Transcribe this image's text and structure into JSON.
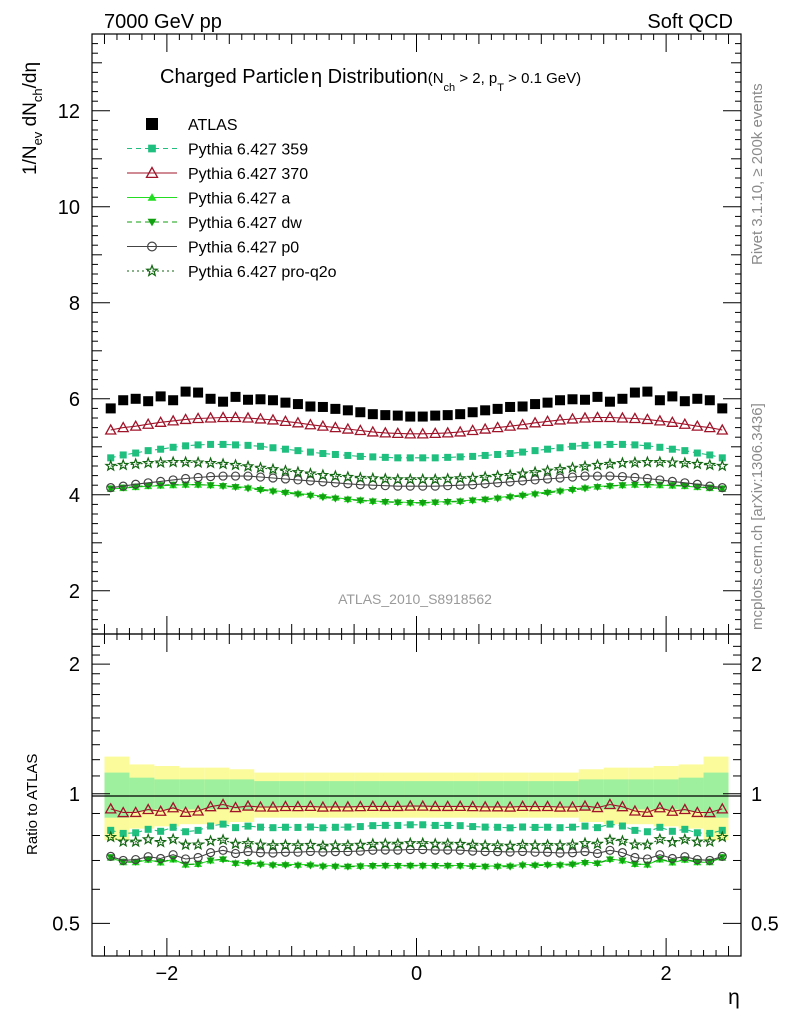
{
  "header": {
    "left": "7000 GeV pp",
    "right": "Soft QCD"
  },
  "side": {
    "rivet": "Rivet 3.1.10, ≥ 200k events",
    "mcplots": "mcplots.cern.ch [arXiv:1306.3436]"
  },
  "chart_data": {
    "type": "scatter",
    "title": {
      "main": "Charged Particle",
      "eta": "η",
      "dist": " Distribution",
      "sub_open": "(N",
      "sub_ch": "ch",
      "sub_mid": " > 2, p",
      "sub_t": "T",
      "sub_close": " > 0.1 GeV)"
    },
    "watermark": "ATLAS_2010_S8918562",
    "ylabel_main": {
      "p1": "1/N",
      "s1": "ev",
      "p2": " dN",
      "s2": "ch",
      "p3": "/dη"
    },
    "ylabel_ratio": "Ratio to ATLAS",
    "xlabel": "η",
    "xlim": [
      -2.6,
      2.6
    ],
    "ylim_main": [
      1.1,
      13.6
    ],
    "ylim_ratio": [
      0.42,
      2.35
    ],
    "ratio_log": true,
    "x_ticks": [
      "−2",
      "0",
      "2"
    ],
    "x_tick_values": [
      -2,
      0,
      2
    ],
    "y_ticks_main": [
      "2",
      "4",
      "6",
      "8",
      "10",
      "12"
    ],
    "y_tick_values_main": [
      2,
      4,
      6,
      8,
      10,
      12
    ],
    "y_ticks_ratio": [
      "0.5",
      "1",
      "2"
    ],
    "y_tick_values_ratio": [
      0.5,
      1,
      2
    ],
    "x": [
      -2.45,
      -2.35,
      -2.25,
      -2.15,
      -2.05,
      -1.95,
      -1.85,
      -1.75,
      -1.65,
      -1.55,
      -1.45,
      -1.35,
      -1.25,
      -1.15,
      -1.05,
      -0.95,
      -0.85,
      -0.75,
      -0.65,
      -0.55,
      -0.45,
      -0.35,
      -0.25,
      -0.15,
      -0.05,
      0.05,
      0.15,
      0.25,
      0.35,
      0.45,
      0.55,
      0.65,
      0.75,
      0.85,
      0.95,
      1.05,
      1.15,
      1.25,
      1.35,
      1.45,
      1.55,
      1.65,
      1.75,
      1.85,
      1.95,
      2.05,
      2.15,
      2.25,
      2.35,
      2.45
    ],
    "series": [
      {
        "name": "ATLAS",
        "color": "#000000",
        "marker": "square-filled",
        "line": "none",
        "values": [
          5.8,
          5.97,
          6.0,
          5.95,
          6.05,
          5.97,
          6.15,
          6.13,
          6.0,
          5.94,
          6.04,
          5.98,
          5.99,
          5.97,
          5.92,
          5.89,
          5.84,
          5.83,
          5.79,
          5.76,
          5.72,
          5.68,
          5.66,
          5.65,
          5.63,
          5.63,
          5.65,
          5.66,
          5.68,
          5.72,
          5.76,
          5.79,
          5.83,
          5.84,
          5.89,
          5.92,
          5.97,
          5.99,
          5.98,
          6.04,
          5.94,
          6.0,
          6.13,
          6.15,
          5.97,
          6.05,
          5.95,
          6.0,
          5.97,
          5.8
        ]
      },
      {
        "name": "Pythia 6.427 359",
        "color": "#1fbf7f",
        "marker": "square-small",
        "line": "dashed",
        "values": [
          4.77,
          4.83,
          4.87,
          4.92,
          4.95,
          4.99,
          5.02,
          5.04,
          5.05,
          5.05,
          5.04,
          5.03,
          5.01,
          4.98,
          4.95,
          4.92,
          4.89,
          4.86,
          4.84,
          4.82,
          4.8,
          4.79,
          4.78,
          4.77,
          4.77,
          4.77,
          4.77,
          4.78,
          4.79,
          4.8,
          4.82,
          4.84,
          4.86,
          4.89,
          4.92,
          4.95,
          4.98,
          5.01,
          5.03,
          5.04,
          5.05,
          5.05,
          5.04,
          5.02,
          4.99,
          4.95,
          4.92,
          4.87,
          4.83,
          4.77
        ]
      },
      {
        "name": "Pythia 6.427 370",
        "color": "#a0142a",
        "marker": "triangle-open",
        "line": "solid",
        "values": [
          5.35,
          5.4,
          5.43,
          5.47,
          5.51,
          5.54,
          5.57,
          5.59,
          5.6,
          5.61,
          5.61,
          5.6,
          5.58,
          5.56,
          5.53,
          5.5,
          5.46,
          5.43,
          5.4,
          5.37,
          5.34,
          5.31,
          5.29,
          5.28,
          5.27,
          5.27,
          5.28,
          5.29,
          5.31,
          5.34,
          5.37,
          5.4,
          5.43,
          5.46,
          5.5,
          5.53,
          5.56,
          5.58,
          5.6,
          5.61,
          5.61,
          5.6,
          5.59,
          5.57,
          5.54,
          5.51,
          5.47,
          5.43,
          5.4,
          5.35
        ]
      },
      {
        "name": "Pythia 6.427 a",
        "color": "#22dd22",
        "marker": "triangle-filled",
        "line": "solid",
        "values": [
          4.12,
          4.14,
          4.16,
          4.18,
          4.19,
          4.2,
          4.21,
          4.21,
          4.2,
          4.19,
          4.17,
          4.15,
          4.12,
          4.09,
          4.06,
          4.03,
          4.0,
          3.97,
          3.94,
          3.91,
          3.89,
          3.87,
          3.86,
          3.85,
          3.84,
          3.84,
          3.85,
          3.86,
          3.87,
          3.89,
          3.91,
          3.94,
          3.97,
          4.0,
          4.03,
          4.06,
          4.09,
          4.12,
          4.15,
          4.17,
          4.19,
          4.2,
          4.21,
          4.21,
          4.2,
          4.19,
          4.18,
          4.16,
          4.14,
          4.12
        ]
      },
      {
        "name": "Pythia 6.427 dw",
        "color": "#10a010",
        "marker": "triangle-down-filled",
        "line": "dashed",
        "values": [
          4.13,
          4.15,
          4.17,
          4.19,
          4.2,
          4.21,
          4.21,
          4.21,
          4.2,
          4.18,
          4.16,
          4.13,
          4.1,
          4.07,
          4.04,
          4.01,
          3.98,
          3.95,
          3.92,
          3.9,
          3.88,
          3.86,
          3.85,
          3.84,
          3.83,
          3.83,
          3.84,
          3.85,
          3.86,
          3.88,
          3.9,
          3.92,
          3.95,
          3.98,
          4.01,
          4.04,
          4.07,
          4.1,
          4.13,
          4.16,
          4.18,
          4.2,
          4.21,
          4.21,
          4.21,
          4.2,
          4.19,
          4.17,
          4.15,
          4.13
        ]
      },
      {
        "name": "Pythia 6.427 p0",
        "color": "#444444",
        "marker": "circle-open",
        "line": "solid",
        "values": [
          4.15,
          4.18,
          4.22,
          4.25,
          4.28,
          4.31,
          4.34,
          4.36,
          4.38,
          4.39,
          4.39,
          4.39,
          4.37,
          4.35,
          4.33,
          4.31,
          4.29,
          4.27,
          4.25,
          4.23,
          4.21,
          4.2,
          4.19,
          4.18,
          4.18,
          4.18,
          4.18,
          4.19,
          4.2,
          4.21,
          4.23,
          4.25,
          4.27,
          4.29,
          4.31,
          4.33,
          4.35,
          4.37,
          4.39,
          4.39,
          4.39,
          4.38,
          4.36,
          4.34,
          4.31,
          4.28,
          4.25,
          4.22,
          4.18,
          4.15
        ]
      },
      {
        "name": "Pythia 6.427 pro-q2o",
        "color": "#116611",
        "marker": "star-open",
        "line": "dotted",
        "values": [
          4.6,
          4.62,
          4.64,
          4.66,
          4.67,
          4.68,
          4.68,
          4.67,
          4.66,
          4.64,
          4.62,
          4.59,
          4.56,
          4.53,
          4.5,
          4.47,
          4.44,
          4.41,
          4.39,
          4.37,
          4.35,
          4.34,
          4.33,
          4.32,
          4.32,
          4.32,
          4.32,
          4.33,
          4.34,
          4.35,
          4.37,
          4.39,
          4.41,
          4.44,
          4.47,
          4.5,
          4.53,
          4.56,
          4.59,
          4.62,
          4.64,
          4.66,
          4.67,
          4.68,
          4.68,
          4.67,
          4.66,
          4.64,
          4.62,
          4.6
        ]
      }
    ],
    "ratio_bands": {
      "x_edges": [
        -2.5,
        -2.3,
        -2.1,
        -1.9,
        -1.7,
        -1.5,
        -1.3,
        -1.1,
        -0.9,
        -0.7,
        -0.5,
        -0.3,
        -0.1,
        0.1,
        0.3,
        0.5,
        0.7,
        0.9,
        1.1,
        1.3,
        1.5,
        1.7,
        1.9,
        2.1,
        2.3,
        2.5
      ],
      "stat_rel": [
        0.12,
        0.09,
        0.08,
        0.08,
        0.08,
        0.08,
        0.07,
        0.07,
        0.07,
        0.07,
        0.07,
        0.07,
        0.07,
        0.07,
        0.07,
        0.07,
        0.07,
        0.07,
        0.07,
        0.08,
        0.08,
        0.08,
        0.08,
        0.09,
        0.12
      ],
      "total_rel": [
        0.22,
        0.17,
        0.16,
        0.15,
        0.15,
        0.14,
        0.12,
        0.12,
        0.12,
        0.12,
        0.12,
        0.12,
        0.12,
        0.12,
        0.12,
        0.12,
        0.12,
        0.12,
        0.12,
        0.14,
        0.15,
        0.15,
        0.16,
        0.17,
        0.22
      ],
      "stat_color": "#9ef09e",
      "total_color": "#fbfb9c"
    }
  }
}
